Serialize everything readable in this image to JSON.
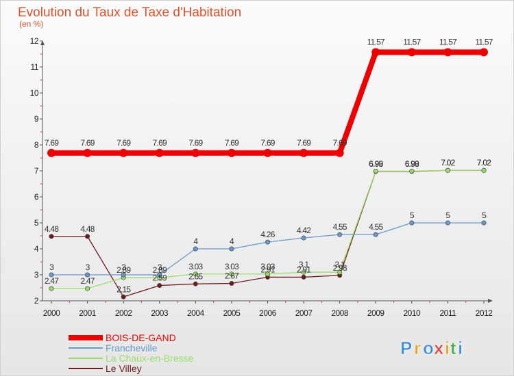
{
  "chart_data": {
    "type": "line",
    "title": "Evolution du Taux de Taxe d'Habitation",
    "subtitle": "(en %)",
    "x": [
      "2000",
      "2001",
      "2002",
      "2003",
      "2004",
      "2005",
      "2006",
      "2007",
      "2008",
      "2009",
      "2010",
      "2011",
      "2012"
    ],
    "ylim": [
      2,
      12
    ],
    "yticks": [
      2,
      3,
      4,
      5,
      6,
      7,
      8,
      9,
      10,
      11,
      12
    ],
    "grid": false,
    "legend_position": "bottom-left",
    "series": [
      {
        "name": "BOIS-DE-GAND",
        "color": "#ee0000",
        "values": [
          7.69,
          7.69,
          7.69,
          7.69,
          7.69,
          7.69,
          7.69,
          7.69,
          7.69,
          11.57,
          11.57,
          11.57,
          11.57
        ],
        "labels": [
          "7.69",
          "7.69",
          "7.69",
          "7.69",
          "7.69",
          "7.69",
          "7.69",
          "7.69",
          "7.69",
          "11.57",
          "11.57",
          "11.57",
          "11.57"
        ]
      },
      {
        "name": "Francheville",
        "color": "#6699cc",
        "values": [
          3,
          3,
          3,
          3,
          4,
          4,
          4.26,
          4.42,
          4.55,
          4.55,
          5,
          5,
          5
        ],
        "labels": [
          "3",
          "3",
          "3",
          "3",
          "4",
          "4",
          "4.26",
          "4.42",
          "4.55",
          "4.55",
          "5",
          "5",
          "5"
        ]
      },
      {
        "name": "La Chaux-en-Bresse",
        "color": "#99dd66",
        "values": [
          2.47,
          2.47,
          2.89,
          2.89,
          3.03,
          3.03,
          3.03,
          3.1,
          3.1,
          6.99,
          6.99,
          7.02,
          7.02
        ],
        "labels": [
          "2.47",
          "2.47",
          "2.89",
          "2.89",
          "3.03",
          "3.03",
          "3.03",
          "3.1",
          "3.1",
          "6.99",
          "6.99",
          "7.02",
          "7.02"
        ]
      },
      {
        "name": "Le Villey",
        "color": "#6b1c1c",
        "values": [
          4.48,
          4.48,
          2.15,
          2.59,
          2.65,
          2.67,
          2.91,
          2.91,
          2.98,
          6.98,
          6.98,
          7.02,
          7.02
        ],
        "labels": [
          "4.48",
          "4.48",
          "2.15",
          "2.59",
          "2.65",
          "2.67",
          "2.91",
          "2.91",
          "2.98",
          "6.98",
          "6.98",
          "7.02",
          "7.02"
        ]
      }
    ]
  },
  "branding": {
    "logo_letters": [
      "P",
      "r",
      "o",
      "x",
      "i",
      "t",
      "i"
    ],
    "logo_colors": [
      "#3a8fd8",
      "#f0a020",
      "#3a8fd8",
      "#e04040",
      "#f0a020",
      "#40b040",
      "#3a8fd8"
    ]
  }
}
